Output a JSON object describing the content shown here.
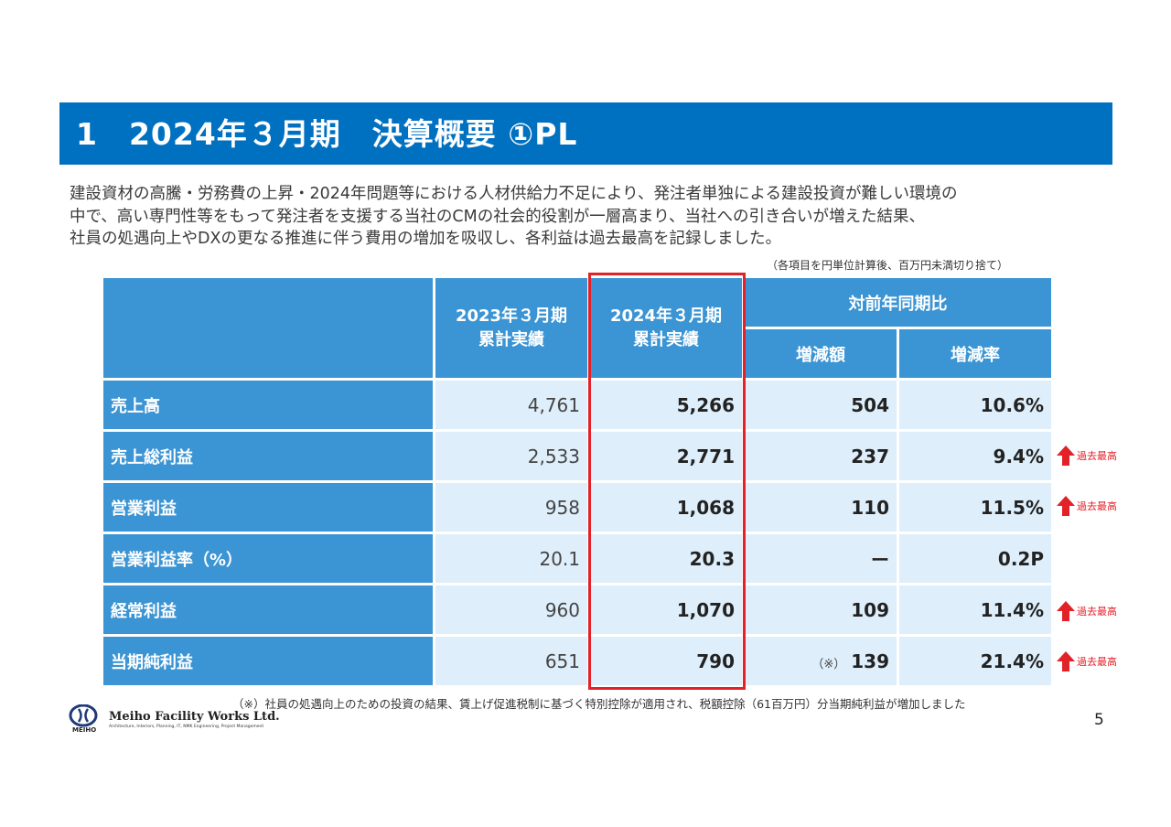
{
  "title": "1　2024年３月期　決算概要 ①PL",
  "intro": [
    "建設資材の高騰・労務費の上昇・2024年問題等における人材供給力不足により、発注者単独による建設投資が難しい環境の",
    "中で、高い専門性等をもって発注者を支援する当社のCMの社会的役割が一層高まり、当社への引き合いが増えた結果、",
    "社員の処遇向上やDXの更なる推進に伴う費用の増加を吸収し、各利益は過去最高を記録しました。"
  ],
  "unit_note": "（各項目を円単位計算後、百万円未満切り捨て）",
  "table": {
    "header": {
      "prev_period": [
        "2023年３月期",
        "累計実績"
      ],
      "curr_period": [
        "2024年３月期",
        "累計実績"
      ],
      "comparison": "対前年同期比",
      "change_amount": "増減額",
      "change_rate": "増減率"
    },
    "rows": [
      {
        "label": "売上高",
        "prev": "4,761",
        "curr": "5,266",
        "diff": "504",
        "rate": "10.6%",
        "note": "",
        "record": ""
      },
      {
        "label": "売上総利益",
        "prev": "2,533",
        "curr": "2,771",
        "diff": "237",
        "rate": "9.4%",
        "note": "",
        "record": "過去最高"
      },
      {
        "label": "営業利益",
        "prev": "958",
        "curr": "1,068",
        "diff": "110",
        "rate": "11.5%",
        "note": "",
        "record": "過去最高"
      },
      {
        "label": "営業利益率（%）",
        "prev": "20.1",
        "curr": "20.3",
        "diff": "ー",
        "rate": "0.2P",
        "note": "",
        "record": ""
      },
      {
        "label": "経常利益",
        "prev": "960",
        "curr": "1,070",
        "diff": "109",
        "rate": "11.4%",
        "note": "",
        "record": "過去最高"
      },
      {
        "label": "当期純利益",
        "prev": "651",
        "curr": "790",
        "diff": "139",
        "rate": "21.4%",
        "note": "（※）",
        "record": "過去最高"
      }
    ]
  },
  "footnote": "（※）社員の処遇向上のための投資の結果、賃上げ促進税制に基づく特別控除が適用され、税額控除（61百万円）分当期純利益が増加しました",
  "logo": {
    "company": "Meiho Facility Works Ltd.",
    "tagline": "Architecture, Interiors, Planning, IT, NMK Engineering, Project Management",
    "mark_text": "MEIHO"
  },
  "page_number": "5",
  "colors": {
    "title_bar": "#0070c0",
    "header_cell": "#3b94d3",
    "data_cell": "#deeefa",
    "highlight": "#e32128"
  },
  "icons": {
    "record_arrow": "red-up-arrow-icon"
  }
}
